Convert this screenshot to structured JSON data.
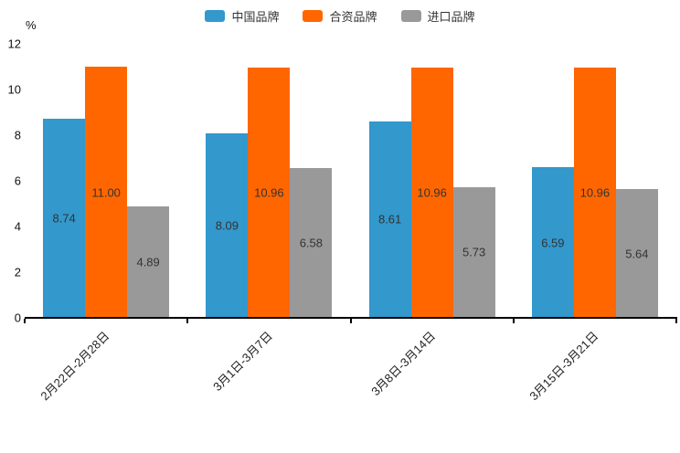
{
  "chart_data": {
    "type": "bar",
    "title": "",
    "ylabel": "%",
    "xlabel": "",
    "ylim": [
      0,
      12
    ],
    "yticks": [
      0,
      2,
      4,
      6,
      8,
      10,
      12
    ],
    "grid": false,
    "legend_position": "top",
    "value_labels": "two-decimal, centered inside bars",
    "categories": [
      "2月22日-2月28日",
      "3月1日-3月7日",
      "3月8日-3月14日",
      "3月15日-3月21日"
    ],
    "series": [
      {
        "name": "中国品牌",
        "color": "#3398CC",
        "values": [
          8.74,
          8.09,
          8.61,
          6.59
        ]
      },
      {
        "name": "合资品牌",
        "color": "#FF6600",
        "values": [
          11.0,
          10.96,
          10.96,
          10.96
        ]
      },
      {
        "name": "进口品牌",
        "color": "#999999",
        "values": [
          4.89,
          6.58,
          5.73,
          5.64
        ]
      }
    ]
  },
  "colors": {
    "background": "#FFFFFF",
    "axis": "#000000",
    "tick_label": "#111111",
    "bar_value_label": "#333333",
    "legend_text": "#333333"
  }
}
